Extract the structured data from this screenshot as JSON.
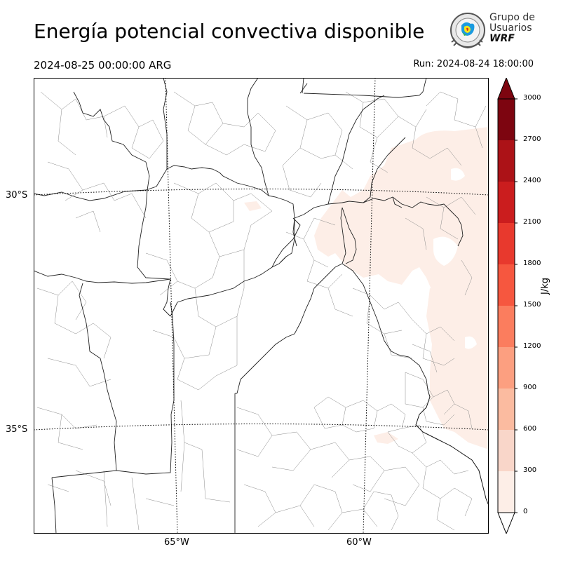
{
  "header": {
    "title": "Energía potencial convectiva disponible",
    "valid_time": "2024-08-25 00:00:00 ARG",
    "run_time": "Run: 2024-08-24 18:00:00"
  },
  "logo": {
    "line1": "Grupo de",
    "line2": "Usuarios",
    "line3": "WRF"
  },
  "map": {
    "lat_labels": [
      "30°S",
      "35°S"
    ],
    "lon_labels": [
      "65°W",
      "60°W"
    ]
  },
  "colorbar": {
    "unit": "J/kg",
    "ticks": [
      "3000",
      "2700",
      "2400",
      "2100",
      "1800",
      "1500",
      "1200",
      "900",
      "600",
      "300",
      "0"
    ],
    "colors": [
      "#fdeee7",
      "#f9d6c9",
      "#fbbba0",
      "#fc9f80",
      "#fb7d5e",
      "#f6573f",
      "#e8392d",
      "#cb1d1e",
      "#ac1217",
      "#7d0510"
    ],
    "extend_colors": {
      "low": "#ffffff",
      "high": "#7d0510"
    }
  }
}
